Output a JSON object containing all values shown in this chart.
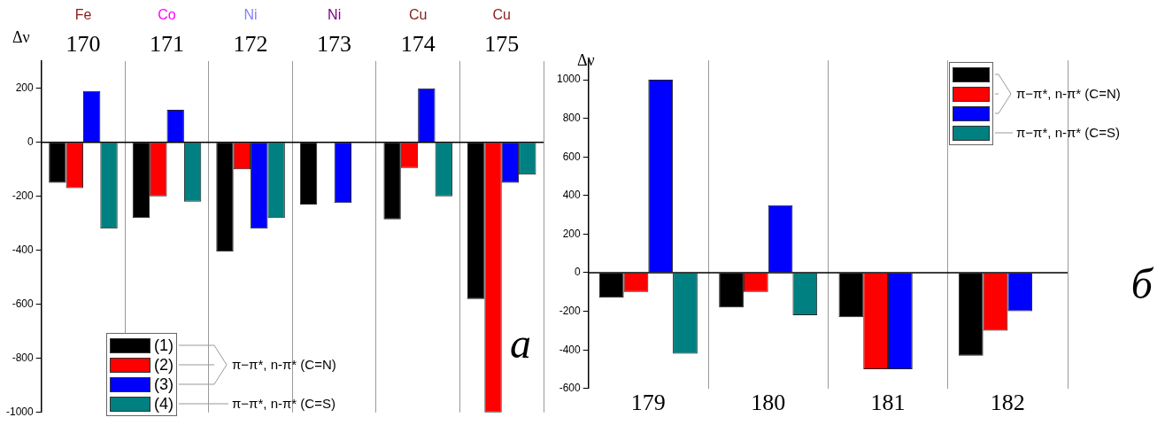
{
  "chart_data": [
    {
      "type": "bar",
      "ylabel": "Δν",
      "categories": [
        "170",
        "171",
        "172",
        "173",
        "174",
        "175"
      ],
      "ylim": [
        -1000,
        300
      ],
      "yticks": [
        -1000,
        -800,
        -600,
        -400,
        -200,
        0,
        200
      ],
      "grid": "x",
      "legend": "bottom left",
      "series": [
        {
          "name": "(1)",
          "color": "#000000",
          "values": [
            -150,
            -280,
            -405,
            -230,
            -285,
            -580
          ]
        },
        {
          "name": "(2)",
          "color": "#ff0000",
          "values": [
            -170,
            -200,
            -100,
            null,
            -95,
            -1000
          ]
        },
        {
          "name": "(3)",
          "color": "#0000ff",
          "values": [
            190,
            120,
            -320,
            -225,
            200,
            -150
          ]
        },
        {
          "name": "(4)",
          "color": "#008080",
          "values": [
            -320,
            -220,
            -280,
            null,
            -200,
            -120
          ]
        }
      ],
      "annotations": [
        "Fe",
        "Co",
        "Ni",
        "Ni",
        "Cu",
        "Cu",
        "π−π*, n-π* (C=N)",
        "π−π*, n-π* (C=S)",
        "a"
      ]
    },
    {
      "type": "bar",
      "ylabel": "Δν",
      "categories": [
        "179",
        "180",
        "181",
        "182"
      ],
      "ylim": [
        -600,
        1100
      ],
      "yticks": [
        -600,
        -400,
        -200,
        0,
        200,
        400,
        600,
        800,
        1000
      ],
      "grid": "x",
      "legend": "top right",
      "series": [
        {
          "color": "#000000",
          "values": [
            -130,
            -180,
            -230,
            -430
          ]
        },
        {
          "color": "#ff0000",
          "values": [
            -100,
            -100,
            -500,
            -300
          ]
        },
        {
          "color": "#0000ff",
          "values": [
            1000,
            350,
            -500,
            -200
          ]
        },
        {
          "color": "#008080",
          "values": [
            -420,
            -220,
            null,
            null
          ]
        }
      ],
      "annotations": [
        "π−π*, n-π* (C=N)",
        "π−π*, n-π* (C=S)",
        "б"
      ]
    }
  ]
}
